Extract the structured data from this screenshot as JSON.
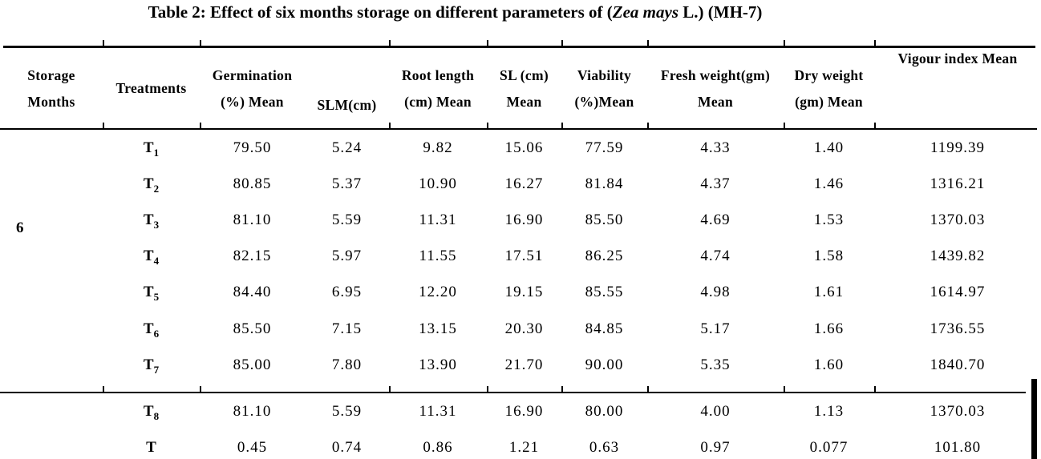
{
  "title": {
    "prefix": "Table 2: Effect of six months storage on different parameters of (",
    "species": "Zea mays",
    "suffix": " L.) (MH-7)"
  },
  "table": {
    "headers": [
      {
        "key": "storage_months",
        "lines": [
          "Storage",
          "Months"
        ]
      },
      {
        "key": "treatments",
        "lines": [
          "Treatments"
        ]
      },
      {
        "key": "germination",
        "lines": [
          "Germination",
          "(%) Mean"
        ]
      },
      {
        "key": "slm",
        "lines": [
          "SLM(cm)"
        ]
      },
      {
        "key": "root_length",
        "lines": [
          "Root length",
          "(cm) Mean"
        ]
      },
      {
        "key": "sl",
        "lines": [
          "SL (cm)",
          "Mean"
        ]
      },
      {
        "key": "viability",
        "lines": [
          "Viability",
          "(%)Mean"
        ]
      },
      {
        "key": "fresh_weight",
        "lines": [
          "Fresh weight(gm)",
          "Mean"
        ]
      },
      {
        "key": "dry_weight",
        "lines": [
          "Dry weight",
          "(gm) Mean"
        ]
      },
      {
        "key": "vigour_index",
        "lines": [
          "Vigour index Mean"
        ]
      }
    ],
    "storage_months_value": "6",
    "rows_group1": [
      {
        "treatment": "T",
        "sub": "1",
        "values": [
          "79.50",
          "5.24",
          "9.82",
          "15.06",
          "77.59",
          "4.33",
          "1.40",
          "1199.39"
        ]
      },
      {
        "treatment": "T",
        "sub": "2",
        "values": [
          "80.85",
          "5.37",
          "10.90",
          "16.27",
          "81.84",
          "4.37",
          "1.46",
          "1316.21"
        ]
      },
      {
        "treatment": "T",
        "sub": "3",
        "values": [
          "81.10",
          "5.59",
          "11.31",
          "16.90",
          "85.50",
          "4.69",
          "1.53",
          "1370.03"
        ]
      },
      {
        "treatment": "T",
        "sub": "4",
        "values": [
          "82.15",
          "5.97",
          "11.55",
          "17.51",
          "86.25",
          "4.74",
          "1.58",
          "1439.82"
        ]
      },
      {
        "treatment": "T",
        "sub": "5",
        "values": [
          "84.40",
          "6.95",
          "12.20",
          "19.15",
          "85.55",
          "4.98",
          "1.61",
          "1614.97"
        ]
      },
      {
        "treatment": "T",
        "sub": "6",
        "values": [
          "85.50",
          "7.15",
          "13.15",
          "20.30",
          "84.85",
          "5.17",
          "1.66",
          "1736.55"
        ]
      },
      {
        "treatment": "T",
        "sub": "7",
        "values": [
          "85.00",
          "7.80",
          "13.90",
          "21.70",
          "90.00",
          "5.35",
          "1.60",
          "1840.70"
        ]
      }
    ],
    "rows_group2": [
      {
        "treatment": "T",
        "sub": "8",
        "values": [
          "81.10",
          "5.59",
          "11.31",
          "16.90",
          "80.00",
          "4.00",
          "1.13",
          "1370.03"
        ]
      },
      {
        "treatment": "T",
        "sub": "",
        "values": [
          "0.45",
          "0.74",
          "0.86",
          "1.21",
          "0.63",
          "0.97",
          "0.077",
          "101.80"
        ]
      }
    ]
  },
  "colors": {
    "text": "#000000",
    "rule": "#000000",
    "background": "#ffffff"
  }
}
